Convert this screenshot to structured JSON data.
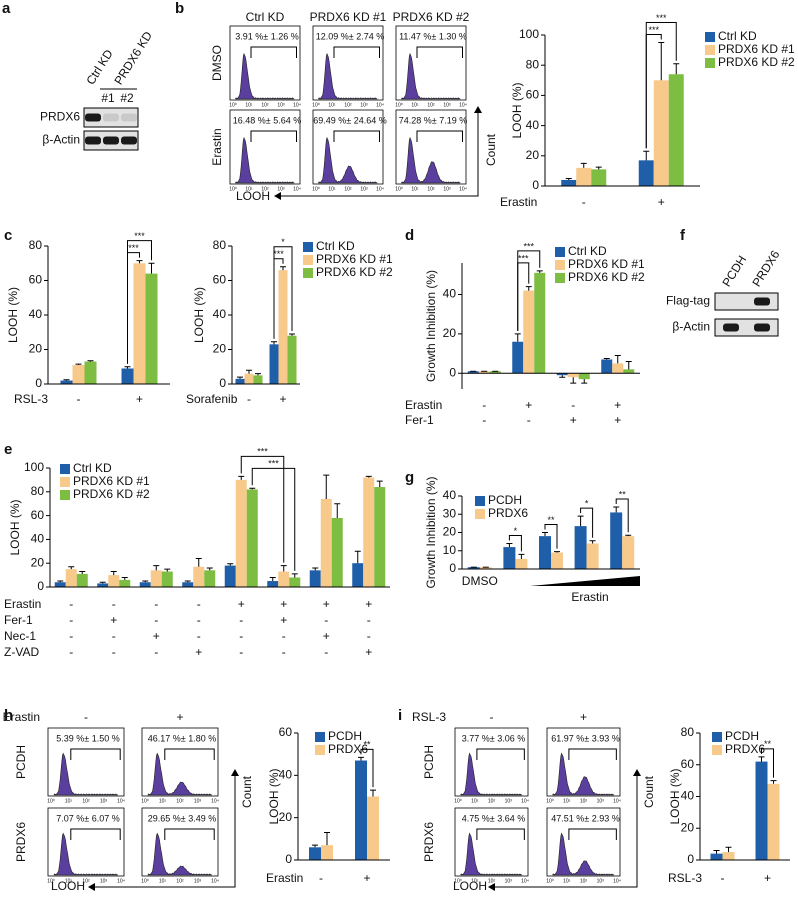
{
  "blots": [
    {
      "letter": "a",
      "lanes": [
        "Ctrl KD",
        "PRDX6 KD"
      ],
      "sublanes": [
        "#1",
        "#2"
      ],
      "rows": [
        "PRDX6",
        "β-Actin"
      ]
    },
    {
      "letter": "f",
      "lanes": [
        "PCDH",
        "PRDX6"
      ],
      "rows": [
        "Flag-tag",
        "β-Actin"
      ]
    }
  ],
  "flow_panels": [
    {
      "letter": "b",
      "columns": [
        "Ctrl KD",
        "PRDX6 KD #1",
        "PRDX6 KD #2"
      ],
      "rows": [
        "DMSO",
        "Erastin"
      ],
      "gates": [
        [
          "3.91 %± 1.26 %",
          "12.09 %± 2.74 %",
          "11.47 %± 1.30 %"
        ],
        [
          "16.48 %± 5.64 %",
          "69.49 %± 24.64 %",
          "74.28 %± 7.19 %"
        ]
      ],
      "log_ticks": [
        "10⁰",
        "10¹",
        "10²",
        "10³",
        "10⁴"
      ],
      "x_label": "LOOH",
      "y_label": "Count"
    },
    {
      "letter": "h",
      "header": "Erastin",
      "columns": [
        "-",
        "+"
      ],
      "rows": [
        "PCDH",
        "PRDX6"
      ],
      "gates": [
        [
          "5.39 %± 1.50 %",
          "46.17 %± 1.80 %"
        ],
        [
          "7.07 %± 6.07 %",
          "29.65 %± 3.49 %"
        ]
      ],
      "log_ticks": [
        "10⁰",
        "10¹",
        "10²",
        "10³",
        "10⁴"
      ],
      "x_label": "LOOH",
      "y_label": "Count"
    },
    {
      "letter": "i",
      "header": "RSL-3",
      "columns": [
        "-",
        "+"
      ],
      "rows": [
        "PCDH",
        "PRDX6"
      ],
      "gates": [
        [
          "3.77 %± 3.06 %",
          "61.97 %± 3.93 %"
        ],
        [
          "4.75 %± 3.64 %",
          "47.51 %± 2.93 %"
        ]
      ],
      "log_ticks": [
        "10⁰",
        "10¹",
        "10²",
        "10³",
        "10⁴"
      ],
      "x_label": "LOOH",
      "y_label": "Count"
    }
  ],
  "chart_data": [
    {
      "type": "bar",
      "y_label": "LOOH (%)",
      "ylim": [
        0,
        100
      ],
      "yticks": [
        0,
        20,
        40,
        60,
        80,
        100
      ],
      "conditions": [
        {
          "name": "Erastin",
          "values": [
            "-",
            "+"
          ]
        }
      ],
      "series": [
        {
          "name": "Ctrl KD",
          "color": "#1f5fa9",
          "values": [
            4,
            17
          ],
          "errors": [
            1,
            6
          ]
        },
        {
          "name": "PRDX6 KD #1",
          "color": "#f7c98b",
          "values": [
            12,
            70
          ],
          "errors": [
            3,
            25
          ]
        },
        {
          "name": "PRDX6 KD #2",
          "color": "#7cbd42",
          "values": [
            11,
            74
          ],
          "errors": [
            1.5,
            7
          ]
        }
      ],
      "annotations": [
        "***",
        "***"
      ]
    },
    {
      "type": "bar",
      "letter": "c",
      "y_label": "LOOH (%)",
      "ylim": [
        0,
        80
      ],
      "yticks": [
        0,
        20,
        40,
        60,
        80
      ],
      "conditions": [
        {
          "name": "RSL-3",
          "values": [
            "-",
            "+"
          ]
        }
      ],
      "series": [
        {
          "color": "#1f5fa9",
          "values": [
            2,
            9
          ],
          "errors": [
            0.5,
            1
          ]
        },
        {
          "color": "#f7c98b",
          "values": [
            11,
            70
          ],
          "errors": [
            0.5,
            1.5
          ]
        },
        {
          "color": "#7cbd42",
          "values": [
            13,
            64
          ],
          "errors": [
            0.5,
            6
          ]
        }
      ],
      "annotations": [
        "***",
        "***"
      ]
    },
    {
      "type": "bar",
      "y_label": "LOOH (%)",
      "ylim": [
        0,
        80
      ],
      "yticks": [
        0,
        20,
        40,
        60,
        80
      ],
      "conditions": [
        {
          "name": "Sorafenib",
          "values": [
            "-",
            "+"
          ]
        }
      ],
      "series": [
        {
          "name": "Ctrl KD",
          "color": "#1f5fa9",
          "values": [
            3,
            23
          ],
          "errors": [
            1,
            1.5
          ]
        },
        {
          "name": "PRDX6 KD #1",
          "color": "#f7c98b",
          "values": [
            6,
            66
          ],
          "errors": [
            2,
            2
          ]
        },
        {
          "name": "PRDX6 KD #2",
          "color": "#7cbd42",
          "values": [
            5,
            28
          ],
          "errors": [
            1,
            1
          ]
        }
      ],
      "annotations": [
        "*",
        "***"
      ]
    },
    {
      "type": "bar",
      "letter": "d",
      "y_label": "Growth Inhibition (%)",
      "ylim": [
        -8,
        56
      ],
      "yticks": [
        0,
        20,
        40
      ],
      "conditions": [
        {
          "name": "Erastin",
          "values": [
            "-",
            "+",
            "-",
            "+"
          ]
        },
        {
          "name": "Fer-1",
          "values": [
            "-",
            "-",
            "+",
            "+"
          ]
        }
      ],
      "series": [
        {
          "name": "Ctrl KD",
          "color": "#1f5fa9",
          "values": [
            1,
            16,
            -1,
            7
          ],
          "errors": [
            0,
            4,
            1,
            0.5
          ]
        },
        {
          "name": "PRDX6 KD #1",
          "color": "#f7c98b",
          "values": [
            1,
            42,
            -2,
            5
          ],
          "errors": [
            0,
            2,
            3,
            4
          ]
        },
        {
          "name": "PRDX6 KD #2",
          "color": "#7cbd42",
          "values": [
            1,
            51,
            -3,
            2
          ],
          "errors": [
            0,
            1,
            2,
            4
          ]
        }
      ],
      "annotations": [
        "***",
        "***"
      ]
    },
    {
      "type": "bar",
      "letter": "e",
      "y_label": "LOOH (%)",
      "ylim": [
        0,
        100
      ],
      "yticks": [
        0,
        20,
        40,
        60,
        80,
        100
      ],
      "conditions": [
        {
          "name": "Erastin",
          "values": [
            "-",
            "-",
            "-",
            "-",
            "+",
            "+",
            "+",
            "+"
          ]
        },
        {
          "name": "Fer-1",
          "values": [
            "-",
            "+",
            "-",
            "-",
            "-",
            "+",
            "-",
            "-"
          ]
        },
        {
          "name": "Nec-1",
          "values": [
            "-",
            "-",
            "+",
            "-",
            "-",
            "-",
            "+",
            "-"
          ]
        },
        {
          "name": "Z-VAD",
          "values": [
            "-",
            "-",
            "-",
            "+",
            "-",
            "-",
            "-",
            "+"
          ]
        }
      ],
      "series": [
        {
          "name": "Ctrl KD",
          "color": "#1f5fa9",
          "values": [
            4,
            3,
            4,
            4,
            18,
            5,
            14,
            20
          ],
          "errors": [
            1,
            1,
            1,
            1,
            1.5,
            3,
            2,
            10
          ]
        },
        {
          "name": "PRDX6 KD #1",
          "color": "#f7c98b",
          "values": [
            15,
            10,
            14,
            17,
            90,
            13,
            74,
            92
          ],
          "errors": [
            2,
            3,
            4,
            7,
            3,
            5,
            20,
            1
          ]
        },
        {
          "name": "PRDX6 KD #2",
          "color": "#7cbd42",
          "values": [
            11,
            6,
            13,
            14,
            82,
            8,
            58,
            84
          ],
          "errors": [
            2,
            2,
            2,
            2,
            1,
            3,
            12,
            5
          ]
        }
      ],
      "annotations": [
        "***",
        "***"
      ]
    },
    {
      "type": "bar",
      "letter": "g",
      "y_label": "Growth Inhibition (%)",
      "ylim": [
        0,
        40
      ],
      "yticks": [
        0,
        10,
        20,
        30,
        40
      ],
      "categories": [
        "DMSO",
        null,
        null,
        null,
        null
      ],
      "group_label": "Erastin",
      "series": [
        {
          "name": "PCDH",
          "color": "#1f5fa9",
          "values": [
            1,
            12,
            18,
            23.5,
            31
          ],
          "errors": [
            0,
            2,
            2,
            5.5,
            3
          ]
        },
        {
          "name": "PRDX6",
          "color": "#f7c98b",
          "values": [
            1,
            5.5,
            9,
            14,
            18
          ],
          "errors": [
            0,
            2.5,
            0.5,
            1.5,
            0.5
          ]
        }
      ],
      "annotations": [
        "*",
        "**",
        "*",
        "**"
      ]
    },
    {
      "type": "bar",
      "y_label": "LOOH (%)",
      "ylim": [
        0,
        60
      ],
      "yticks": [
        0,
        20,
        40,
        60
      ],
      "conditions": [
        {
          "name": "Erastin",
          "values": [
            "-",
            "+"
          ]
        }
      ],
      "series": [
        {
          "name": "PCDH",
          "color": "#1f5fa9",
          "values": [
            6,
            47
          ],
          "errors": [
            1,
            1.5
          ]
        },
        {
          "name": "PRDX6",
          "color": "#f7c98b",
          "values": [
            7,
            30
          ],
          "errors": [
            6,
            3
          ]
        }
      ],
      "annotations": [
        "**"
      ]
    },
    {
      "type": "bar",
      "y_label": "LOOH (%)",
      "ylim": [
        0,
        80
      ],
      "yticks": [
        0,
        20,
        40,
        60,
        80
      ],
      "conditions": [
        {
          "name": "RSL-3",
          "values": [
            "-",
            "+"
          ]
        }
      ],
      "series": [
        {
          "name": "PCDH",
          "color": "#1f5fa9",
          "values": [
            4,
            62
          ],
          "errors": [
            2,
            3
          ]
        },
        {
          "name": "PRDX6",
          "color": "#f7c98b",
          "values": [
            5,
            48
          ],
          "errors": [
            3,
            2
          ]
        }
      ],
      "annotations": [
        "**"
      ]
    }
  ]
}
